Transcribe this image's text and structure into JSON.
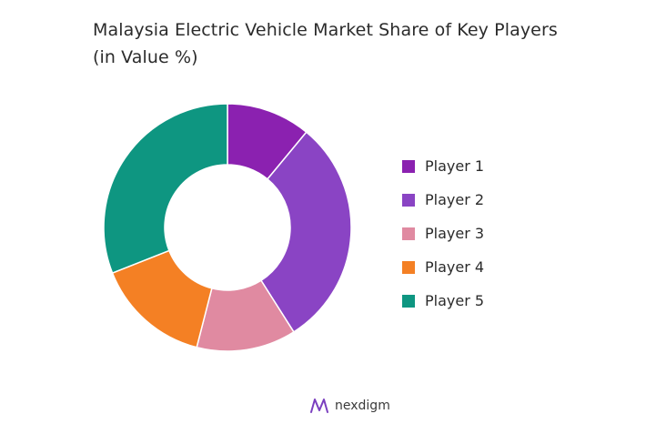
{
  "chart_data": {
    "type": "donut",
    "title_line1": "Malaysia Electric Vehicle Market Share of Key Players",
    "title_line2": "(in Value %)",
    "legend_position": "right",
    "series": [
      {
        "name": "Player 1",
        "value": 11,
        "color": "#8b21b0"
      },
      {
        "name": "Player 2",
        "value": 30,
        "color": "#8a44c4"
      },
      {
        "name": "Player 3",
        "value": 13,
        "color": "#e08aa1"
      },
      {
        "name": "Player 4",
        "value": 15,
        "color": "#f48024"
      },
      {
        "name": "Player 5",
        "value": 31,
        "color": "#0e9681"
      }
    ]
  },
  "brand": {
    "name": "nexdigm",
    "icon": "nexdigm-logo-icon"
  }
}
